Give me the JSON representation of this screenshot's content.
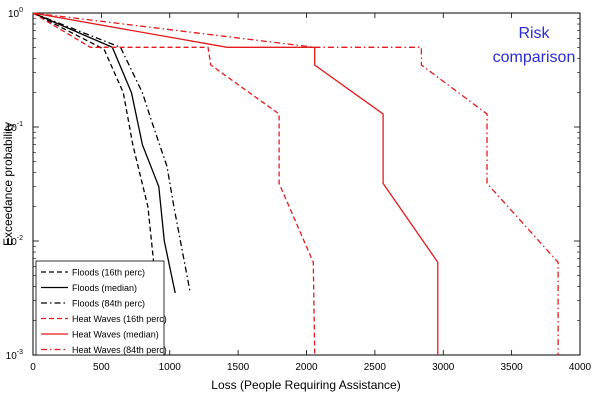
{
  "chart_data": {
    "type": "line",
    "title": "",
    "annotation": [
      "Risk",
      "comparison"
    ],
    "xlabel": "Loss (People Requiring Assistance)",
    "ylabel": "Exceedance probability",
    "xlim": [
      0,
      4000
    ],
    "ylim": [
      0.001,
      1
    ],
    "yscale": "log",
    "xticks": [
      0,
      500,
      1000,
      1500,
      2000,
      2500,
      3000,
      3500,
      4000
    ],
    "xtick_labels": [
      "0",
      "500",
      "1000",
      "1500",
      "2000",
      "2500",
      "3000",
      "3500",
      "4000"
    ],
    "yticks": [
      {
        "value": 1,
        "base": "10",
        "exp": "0"
      },
      {
        "value": 0.1,
        "base": "10",
        "exp": "-1"
      },
      {
        "value": 0.01,
        "base": "10",
        "exp": "-2"
      },
      {
        "value": 0.001,
        "base": "10",
        "exp": "-3"
      }
    ],
    "grid": false,
    "legend_position": "bottom-left",
    "series": [
      {
        "name": "Floods (16th perc)",
        "color": "#000000",
        "dash": "dashed",
        "points": [
          [
            0,
            1
          ],
          [
            520,
            0.48
          ],
          [
            660,
            0.2
          ],
          [
            730,
            0.07
          ],
          [
            840,
            0.02
          ],
          [
            880,
            0.007
          ],
          [
            900,
            0.003
          ]
        ]
      },
      {
        "name": "Floods (median)",
        "color": "#000000",
        "dash": "solid",
        "points": [
          [
            0,
            1
          ],
          [
            580,
            0.5
          ],
          [
            720,
            0.2
          ],
          [
            800,
            0.07
          ],
          [
            920,
            0.03
          ],
          [
            960,
            0.01
          ],
          [
            1040,
            0.0035
          ]
        ]
      },
      {
        "name": "Floods (84th perc)",
        "color": "#000000",
        "dash": "dashdot",
        "points": [
          [
            0,
            1
          ],
          [
            640,
            0.5
          ],
          [
            800,
            0.2
          ],
          [
            870,
            0.11
          ],
          [
            980,
            0.045
          ],
          [
            1030,
            0.02
          ],
          [
            1150,
            0.0035
          ]
        ]
      },
      {
        "name": "Heat Waves (16th perc)",
        "color": "#e41a1c",
        "dash": "dashed",
        "points": [
          [
            0,
            1
          ],
          [
            420,
            0.5
          ],
          [
            1280,
            0.5
          ],
          [
            1300,
            0.35
          ],
          [
            1800,
            0.13
          ],
          [
            1800,
            0.032
          ],
          [
            2050,
            0.0065
          ],
          [
            2060,
            0.001
          ]
        ]
      },
      {
        "name": "Heat Waves (median)",
        "color": "#e41a1c",
        "dash": "solid",
        "points": [
          [
            0,
            1
          ],
          [
            1420,
            0.5
          ],
          [
            2060,
            0.5
          ],
          [
            2060,
            0.35
          ],
          [
            2560,
            0.13
          ],
          [
            2560,
            0.032
          ],
          [
            2960,
            0.0065
          ],
          [
            2960,
            0.001
          ]
        ]
      },
      {
        "name": "Heat Waves (84th perc)",
        "color": "#e41a1c",
        "dash": "dashdot",
        "points": [
          [
            0,
            1
          ],
          [
            2060,
            0.5
          ],
          [
            2840,
            0.5
          ],
          [
            2840,
            0.35
          ],
          [
            3320,
            0.13
          ],
          [
            3320,
            0.032
          ],
          [
            3840,
            0.0065
          ],
          [
            3840,
            0.001
          ]
        ]
      }
    ]
  }
}
